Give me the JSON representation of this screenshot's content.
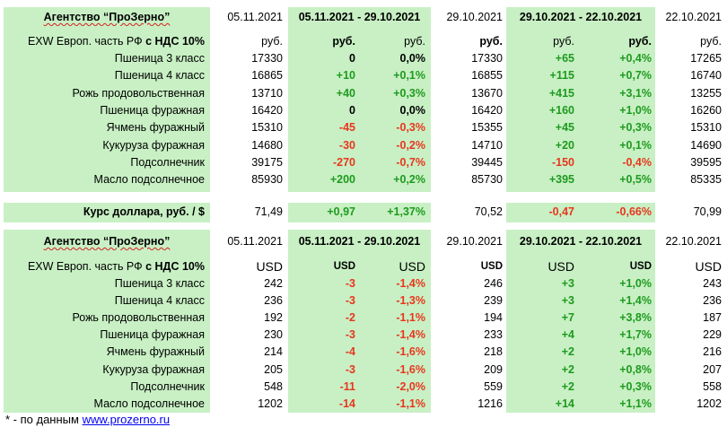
{
  "colors": {
    "panel_green": "#c8f0c4",
    "positive": "#1e9a1e",
    "negative": "#e8361e",
    "link": "#0000ee"
  },
  "rub_table": {
    "header": {
      "agency": "Агентство “ПроЗерно”",
      "date_current": "05.11.2021",
      "period_1": "05.11.2021 - 29.10.2021",
      "date_prev": "29.10.2021",
      "period_2": "29.10.2021 - 22.10.2021",
      "date_prev2": "22.10.2021"
    },
    "units_row": {
      "label": "EXW Европ. часть РФ с НДС 10%",
      "u1": "руб.",
      "u2": "руб.",
      "u3": "руб.",
      "u4": "руб.",
      "u5": "руб.",
      "u6": "руб.",
      "u7": "руб."
    },
    "rows": [
      {
        "name": "Пшеница 3 класс",
        "cur": "17330",
        "d1": "0",
        "p1": "0,0%",
        "prev": "17330",
        "d2": "+65",
        "p2": "+0,4%",
        "prev2": "17265"
      },
      {
        "name": "Пшеница 4 класс",
        "cur": "16865",
        "d1": "+10",
        "p1": "+0,1%",
        "prev": "16855",
        "d2": "+115",
        "p2": "+0,7%",
        "prev2": "16740"
      },
      {
        "name": "Рожь продовольственная",
        "cur": "13710",
        "d1": "+40",
        "p1": "+0,3%",
        "prev": "13670",
        "d2": "+415",
        "p2": "+3,1%",
        "prev2": "13255"
      },
      {
        "name": "Пшеница фуражная",
        "cur": "16420",
        "d1": "0",
        "p1": "0,0%",
        "prev": "16420",
        "d2": "+160",
        "p2": "+1,0%",
        "prev2": "16260"
      },
      {
        "name": "Ячмень фуражный",
        "cur": "15310",
        "d1": "-45",
        "p1": "-0,3%",
        "prev": "15355",
        "d2": "+45",
        "p2": "+0,3%",
        "prev2": "15310"
      },
      {
        "name": "Кукуруза фуражная",
        "cur": "14680",
        "d1": "-30",
        "p1": "-0,2%",
        "prev": "14710",
        "d2": "+20",
        "p2": "+0,1%",
        "prev2": "14690"
      },
      {
        "name": "Подсолнечник",
        "cur": "39175",
        "d1": "-270",
        "p1": "-0,7%",
        "prev": "39445",
        "d2": "-150",
        "p2": "-0,4%",
        "prev2": "39595"
      },
      {
        "name": "Масло подсолнечное",
        "cur": "85930",
        "d1": "+200",
        "p1": "+0,2%",
        "prev": "85730",
        "d2": "+395",
        "p2": "+0,5%",
        "prev2": "85335"
      }
    ]
  },
  "dollar_row": {
    "name": "Курс доллара, руб. / $",
    "cur": "71,49",
    "d1": "+0,97",
    "p1": "+1,37%",
    "prev": "70,52",
    "d2": "-0,47",
    "p2": "-0,66%",
    "prev2": "70,99"
  },
  "usd_table": {
    "header": {
      "agency": "Агентство “ПроЗерно”",
      "date_current": "05.11.2021",
      "period_1": "05.11.2021 - 29.10.2021",
      "date_prev": "29.10.2021",
      "period_2": "29.10.2021 - 22.10.2021",
      "date_prev2": "22.10.2021"
    },
    "units_row": {
      "label": "EXW Европ. часть РФ с НДС 10%",
      "u1": "USD",
      "u2": "USD",
      "u3": "USD",
      "u4": "USD",
      "u5": "USD",
      "u6": "USD",
      "u7": "USD"
    },
    "rows": [
      {
        "name": "Пшеница 3 класс",
        "cur": "242",
        "d1": "-3",
        "p1": "-1,4%",
        "prev": "246",
        "d2": "+3",
        "p2": "+1,0%",
        "prev2": "243"
      },
      {
        "name": "Пшеница 4 класс",
        "cur": "236",
        "d1": "-3",
        "p1": "-1,3%",
        "prev": "239",
        "d2": "+3",
        "p2": "+1,4%",
        "prev2": "236"
      },
      {
        "name": "Рожь продовольственная",
        "cur": "192",
        "d1": "-2",
        "p1": "-1,1%",
        "prev": "194",
        "d2": "+7",
        "p2": "+3,8%",
        "prev2": "187"
      },
      {
        "name": "Пшеница фуражная",
        "cur": "230",
        "d1": "-3",
        "p1": "-1,4%",
        "prev": "233",
        "d2": "+4",
        "p2": "+1,7%",
        "prev2": "229"
      },
      {
        "name": "Ячмень фуражный",
        "cur": "214",
        "d1": "-4",
        "p1": "-1,6%",
        "prev": "218",
        "d2": "+2",
        "p2": "+1,0%",
        "prev2": "216"
      },
      {
        "name": "Кукуруза фуражная",
        "cur": "205",
        "d1": "-3",
        "p1": "-1,6%",
        "prev": "209",
        "d2": "+2",
        "p2": "+0,8%",
        "prev2": "207"
      },
      {
        "name": "Подсолнечник",
        "cur": "548",
        "d1": "-11",
        "p1": "-2,0%",
        "prev": "559",
        "d2": "+2",
        "p2": "+0,3%",
        "prev2": "558"
      },
      {
        "name": "Масло подсолнечное",
        "cur": "1202",
        "d1": "-14",
        "p1": "-1,1%",
        "prev": "1216",
        "d2": "+14",
        "p2": "+1,1%",
        "prev2": "1202"
      }
    ]
  },
  "footnote": {
    "prefix": "* - по данным ",
    "link_text": "www.prozerno.ru"
  }
}
